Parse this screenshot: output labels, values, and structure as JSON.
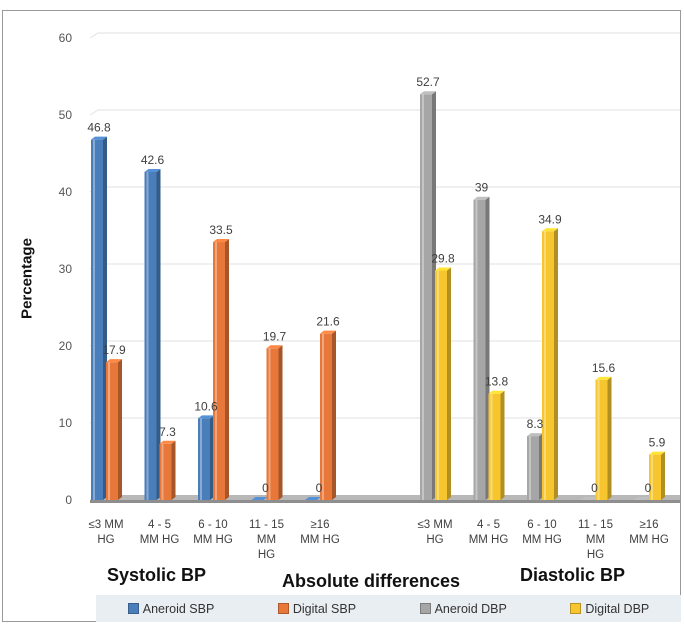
{
  "chart_data": {
    "type": "bar",
    "xlabel": "Absolute differences",
    "ylabel": "Percentage",
    "ylim": [
      0,
      60
    ],
    "yticks": [
      "0",
      "10",
      "20",
      "30",
      "40",
      "50",
      "60"
    ],
    "grid": true,
    "legend_position": "bottom",
    "groups": [
      {
        "label": "Systolic BP",
        "categories": [
          [
            "≤3 MM",
            "HG"
          ],
          [
            "4 - 5",
            "MM HG"
          ],
          [
            "6 - 10",
            "MM HG"
          ],
          [
            "11 - 15",
            "MM",
            "HG"
          ],
          [
            "≥16",
            "MM HG"
          ]
        ],
        "series": [
          {
            "name": "Aneroid SBP",
            "color": "#4a7ebb",
            "values": [
              46.8,
              42.6,
              10.6,
              0,
              0
            ],
            "labels": [
              "46.8",
              "42.6",
              "10.6",
              "0",
              "0"
            ]
          },
          {
            "name": "Digital SBP",
            "color": "#e8773a",
            "values": [
              17.9,
              7.3,
              33.5,
              19.7,
              21.6
            ],
            "labels": [
              "17.9",
              "7.3",
              "33.5",
              "19.7",
              "21.6"
            ]
          }
        ]
      },
      {
        "label": "Diastolic BP",
        "categories": [
          [
            "≤3 MM",
            "HG"
          ],
          [
            "4 - 5",
            "MM HG"
          ],
          [
            "6 - 10",
            "MM HG"
          ],
          [
            "11 - 15",
            "MM",
            "HG"
          ],
          [
            "≥16",
            "MM HG"
          ]
        ],
        "series": [
          {
            "name": "Aneroid DBP",
            "color": "#a6a6a6",
            "values": [
              52.7,
              39,
              8.3,
              0,
              0
            ],
            "labels": [
              "52.7",
              "39",
              "8.3",
              "0",
              "0"
            ]
          },
          {
            "name": "Digital DBP",
            "color": "#f7c62f",
            "values": [
              29.8,
              13.8,
              34.9,
              15.6,
              5.9
            ],
            "labels": [
              "29.8",
              "13.8",
              "34.9",
              "15.6",
              "5.9"
            ]
          }
        ]
      }
    ],
    "legend": [
      {
        "name": "Aneroid SBP",
        "color": "#4a7ebb"
      },
      {
        "name": "Digital SBP",
        "color": "#e8773a"
      },
      {
        "name": "Aneroid DBP",
        "color": "#a6a6a6"
      },
      {
        "name": "Digital DBP",
        "color": "#f7c62f"
      }
    ]
  }
}
